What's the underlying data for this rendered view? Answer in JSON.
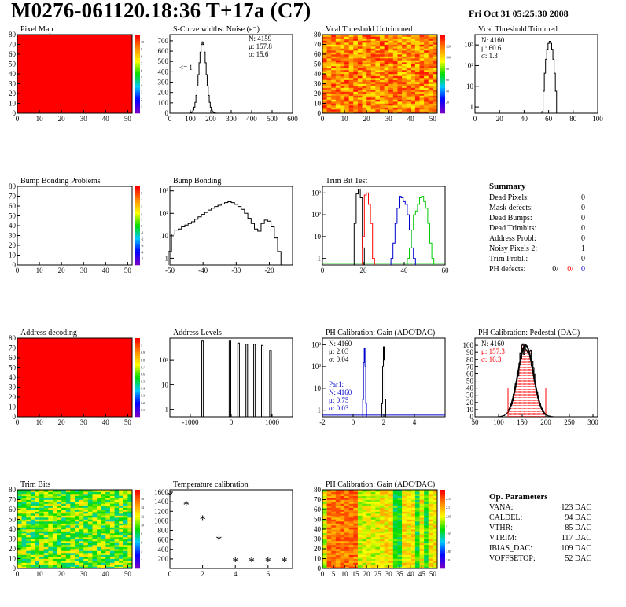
{
  "header": {
    "title": "M0276-061120.18:36 T+17a (C7)",
    "date": "Fri Oct 31 05:25:30 2008"
  },
  "colors": {
    "red": "#ff0000",
    "blue": "#0000cc",
    "green": "#00cc00",
    "black": "#000000"
  },
  "chart_data": [
    {
      "id": "pixel-map",
      "type": "heatmap",
      "title": "Pixel Map",
      "xlim": [
        0,
        52
      ],
      "ylim": [
        0,
        80
      ],
      "xticks": [
        "0",
        "10",
        "20",
        "30",
        "40",
        "50"
      ],
      "yticks": [
        "0",
        "10",
        "20",
        "30",
        "40",
        "50",
        "60",
        "70",
        "80"
      ],
      "fill": "uniform-red",
      "colorbar_ticks": [
        "1",
        "2",
        "3",
        "4",
        "5",
        "6",
        "7",
        "8",
        "9",
        "10"
      ]
    },
    {
      "id": "scurve-noise",
      "type": "histogram",
      "title": "S-Curve widths: Noise (e⁻)",
      "xlim": [
        0,
        600
      ],
      "ylim": [
        0,
        760
      ],
      "xticks": [
        "0",
        "100",
        "200",
        "300",
        "400",
        "500",
        "600"
      ],
      "yticks": [
        "0",
        "100",
        "200",
        "300",
        "400",
        "500",
        "600",
        "700"
      ],
      "stats": [
        "N: 4159",
        "μ: 157.8",
        "σ: 15.6"
      ],
      "annotation": "<= 1",
      "peak_x": 160,
      "peak_y": 690,
      "x_range": [
        100,
        230
      ]
    },
    {
      "id": "vcal-untrimmed",
      "type": "heatmap",
      "title": "Vcal Threshold Untrimmed",
      "xlim": [
        0,
        52
      ],
      "ylim": [
        0,
        80
      ],
      "xticks": [
        "0",
        "10",
        "20",
        "30",
        "40",
        "50"
      ],
      "yticks": [
        "0",
        "10",
        "20",
        "30",
        "40",
        "50",
        "60",
        "70",
        "80"
      ],
      "fill": "noisy-orange-red",
      "colorbar_ticks": [
        "20",
        "40",
        "60",
        "80",
        "100",
        "120"
      ]
    },
    {
      "id": "vcal-trimmed",
      "type": "histogram",
      "title": "Vcal Threshold Trimmed",
      "xlim": [
        0,
        100
      ],
      "log_y": true,
      "xticks": [
        "0",
        "20",
        "40",
        "60",
        "80",
        "100"
      ],
      "yticks": [
        "1",
        "10",
        "10²",
        "10³"
      ],
      "stats": [
        "N: 4160",
        "μ: 60.6",
        "σ:  1.3"
      ],
      "peak_x": 61,
      "peak_y": 1500
    },
    {
      "id": "bump-bonding-problems",
      "type": "heatmap",
      "title": "Bump Bonding Problems",
      "xlim": [
        0,
        52
      ],
      "ylim": [
        0,
        80
      ],
      "xticks": [
        "0",
        "10",
        "20",
        "30",
        "40",
        "50"
      ],
      "yticks": [
        "0",
        "10",
        "20",
        "30",
        "40",
        "50",
        "60",
        "70",
        "80"
      ],
      "fill": "empty",
      "colorbar_ticks": [
        "-5",
        "-4",
        "-3",
        "-2",
        "-1",
        "0",
        "1",
        "2",
        "3",
        "4",
        "5"
      ]
    },
    {
      "id": "bump-bonding",
      "type": "histogram",
      "title": "Bump Bonding",
      "xlim": [
        -50,
        -13
      ],
      "log_y": true,
      "xticks": [
        "-50",
        "-40",
        "-30",
        "-20"
      ],
      "yticks": [
        "1",
        "10",
        "10²",
        "10³"
      ],
      "x": [
        -50,
        -49,
        -48,
        -47,
        -46,
        -45,
        -44,
        -43,
        -42,
        -41,
        -40,
        -39,
        -38,
        -37,
        -36,
        -35,
        -34,
        -33,
        -32,
        -31,
        -30,
        -29,
        -28,
        -27,
        -26,
        -25,
        -24,
        -23,
        -22,
        -21,
        -20,
        -19,
        -18,
        -17,
        -16
      ],
      "values": [
        2,
        12,
        18,
        20,
        25,
        30,
        35,
        42,
        55,
        70,
        90,
        110,
        140,
        170,
        200,
        230,
        260,
        300,
        330,
        300,
        250,
        200,
        150,
        100,
        60,
        35,
        20,
        16,
        35,
        50,
        45,
        25,
        8,
        2,
        0
      ]
    },
    {
      "id": "trim-bit-test",
      "type": "histogram",
      "title": "Trim Bit Test",
      "xlim": [
        0,
        60
      ],
      "log_y": true,
      "xticks": [
        "0",
        "20",
        "40",
        "60"
      ],
      "yticks": [
        "1",
        "10",
        "10²",
        "10³"
      ],
      "series": [
        {
          "color": "black",
          "x": [
            15,
            16,
            17,
            18,
            19,
            20
          ],
          "values": [
            0.5,
            40,
            900,
            1500,
            600,
            3
          ]
        },
        {
          "color": "red",
          "x": [
            20,
            21,
            22,
            23,
            24,
            25
          ],
          "values": [
            10,
            800,
            1000,
            300,
            40,
            1
          ]
        },
        {
          "color": "blue",
          "x": [
            34,
            35,
            36,
            37,
            38,
            39,
            40,
            41,
            42,
            43,
            44,
            45
          ],
          "values": [
            1,
            5,
            40,
            200,
            700,
            600,
            400,
            300,
            100,
            20,
            3,
            1
          ]
        },
        {
          "color": "green",
          "x": [
            42,
            43,
            44,
            45,
            46,
            47,
            48,
            49,
            50,
            51,
            52,
            53,
            54
          ],
          "values": [
            1,
            3,
            20,
            100,
            150,
            300,
            600,
            700,
            400,
            200,
            40,
            5,
            1
          ]
        }
      ]
    },
    {
      "id": "address-decoding",
      "type": "heatmap",
      "title": "Address decoding",
      "xlim": [
        0,
        52
      ],
      "ylim": [
        0,
        80
      ],
      "xticks": [
        "0",
        "10",
        "20",
        "30",
        "40",
        "50"
      ],
      "yticks": [
        "0",
        "10",
        "20",
        "30",
        "40",
        "50",
        "60",
        "70",
        "80"
      ],
      "fill": "uniform-red",
      "colorbar_ticks": [
        "0.1",
        "0.2",
        "0.3",
        "0.4",
        "0.5",
        "0.6",
        "0.7",
        "0.8",
        "0.9",
        "1"
      ]
    },
    {
      "id": "address-levels",
      "type": "histogram",
      "title": "Address Levels",
      "xlim": [
        -1500,
        1500
      ],
      "log_y": true,
      "xticks": [
        "-1000",
        "0",
        "1000"
      ],
      "yticks": [
        "1",
        "10",
        "10²"
      ],
      "x": [
        -700,
        -30,
        180,
        380,
        570,
        760,
        960
      ],
      "values": [
        600,
        600,
        500,
        450,
        450,
        400,
        250
      ]
    },
    {
      "id": "ph-gain",
      "type": "histogram",
      "title": "PH Calibration: Gain (ADC/DAC)",
      "xlim": [
        -2,
        6
      ],
      "log_y": true,
      "xticks": [
        "-2",
        "0",
        "2",
        "4"
      ],
      "yticks": [
        "1",
        "10",
        "10²",
        "10³"
      ],
      "stats": [
        "N: 4160",
        "μ: 2.03",
        "σ: 0.04"
      ],
      "stats2_title": "Par1:",
      "stats2": [
        "N: 4160",
        "μ: 0.75",
        "σ: 0.03"
      ],
      "series": [
        {
          "color": "black",
          "x": [
            1.9,
            1.95,
            2.0,
            2.05,
            2.1
          ],
          "values": [
            2,
            100,
            800,
            200,
            3
          ]
        },
        {
          "color": "blue",
          "x": [
            0.65,
            0.7,
            0.75,
            0.8,
            0.85
          ],
          "values": [
            3,
            150,
            700,
            100,
            2
          ]
        }
      ]
    },
    {
      "id": "ph-pedestal",
      "type": "histogram",
      "title": "PH Calibration: Pedestal (DAC)",
      "xlim": [
        50,
        310
      ],
      "ylim": [
        0,
        110
      ],
      "xticks": [
        "50",
        "100",
        "150",
        "200",
        "250",
        "300"
      ],
      "yticks": [
        "0",
        "10",
        "20",
        "30",
        "40",
        "50",
        "60",
        "70",
        "80",
        "90",
        "100"
      ],
      "stats": [
        "N: 4160",
        "μ: 157.3",
        "σ: 16.3"
      ],
      "mean": 157.3,
      "sigma": 16.3
    },
    {
      "id": "trim-bits",
      "type": "heatmap",
      "title": "Trim Bits",
      "xlim": [
        0,
        52
      ],
      "ylim": [
        0,
        80
      ],
      "xticks": [
        "0",
        "10",
        "20",
        "30",
        "40",
        "50"
      ],
      "yticks": [
        "0",
        "10",
        "20",
        "30",
        "40",
        "50",
        "60",
        "70",
        "80"
      ],
      "fill": "noisy-green",
      "colorbar_ticks": [
        "2",
        "4",
        "6",
        "8",
        "10",
        "12",
        "14",
        "16"
      ]
    },
    {
      "id": "temperature-calibration",
      "type": "scatter",
      "title": "Temperature calibration",
      "xlim": [
        0,
        7.5
      ],
      "ylim": [
        0,
        1650
      ],
      "xticks": [
        "0",
        "2",
        "4",
        "6"
      ],
      "yticks": [
        "200",
        "400",
        "600",
        "800",
        "1000",
        "1200",
        "1400",
        "1600"
      ],
      "x": [
        0,
        1,
        2,
        3,
        4,
        5,
        6,
        7
      ],
      "values": [
        1520,
        1330,
        1020,
        590,
        140,
        140,
        140,
        140
      ]
    },
    {
      "id": "ph-gain-map",
      "type": "heatmap",
      "title": "PH Calibration: Gain (ADC/DAC)",
      "xlim": [
        0,
        52
      ],
      "ylim": [
        0,
        80
      ],
      "xticks": [
        "0",
        "5",
        "10",
        "15",
        "20",
        "25",
        "30",
        "35",
        "40",
        "45",
        "50"
      ],
      "yticks": [
        "0",
        "10",
        "20",
        "30",
        "40",
        "50",
        "60",
        "70",
        "80"
      ],
      "fill": "column-stripes",
      "colorbar_ticks": [
        "1.8",
        "1.85",
        "1.9",
        "1.95",
        "2",
        "2.05",
        "2.1",
        "2.15"
      ]
    }
  ],
  "summary": {
    "title": "Summary",
    "rows": [
      {
        "label": "Dead Pixels:",
        "value": "0"
      },
      {
        "label": "Mask defects:",
        "value": "0"
      },
      {
        "label": "Dead Bumps:",
        "value": "0"
      },
      {
        "label": "Dead Trimbits:",
        "value": "0"
      },
      {
        "label": "Address Probl:",
        "value": "0"
      },
      {
        "label": "Noisy Pixels 2:",
        "value": "1"
      },
      {
        "label": "Trim Probl.:",
        "value": "0"
      }
    ],
    "ph_label": "PH defects:",
    "ph_values": [
      "0/",
      "0/",
      "0"
    ]
  },
  "op_params": {
    "title": "Op. Parameters",
    "rows": [
      {
        "label": "VANA:",
        "value": "123 DAC"
      },
      {
        "label": "CALDEL:",
        "value": "94 DAC"
      },
      {
        "label": "VTHR:",
        "value": "85 DAC"
      },
      {
        "label": "VTRIM:",
        "value": "117 DAC"
      },
      {
        "label": "IBIAS_DAC:",
        "value": "109 DAC"
      },
      {
        "label": "VOFFSETOP:",
        "value": "52 DAC"
      }
    ]
  }
}
